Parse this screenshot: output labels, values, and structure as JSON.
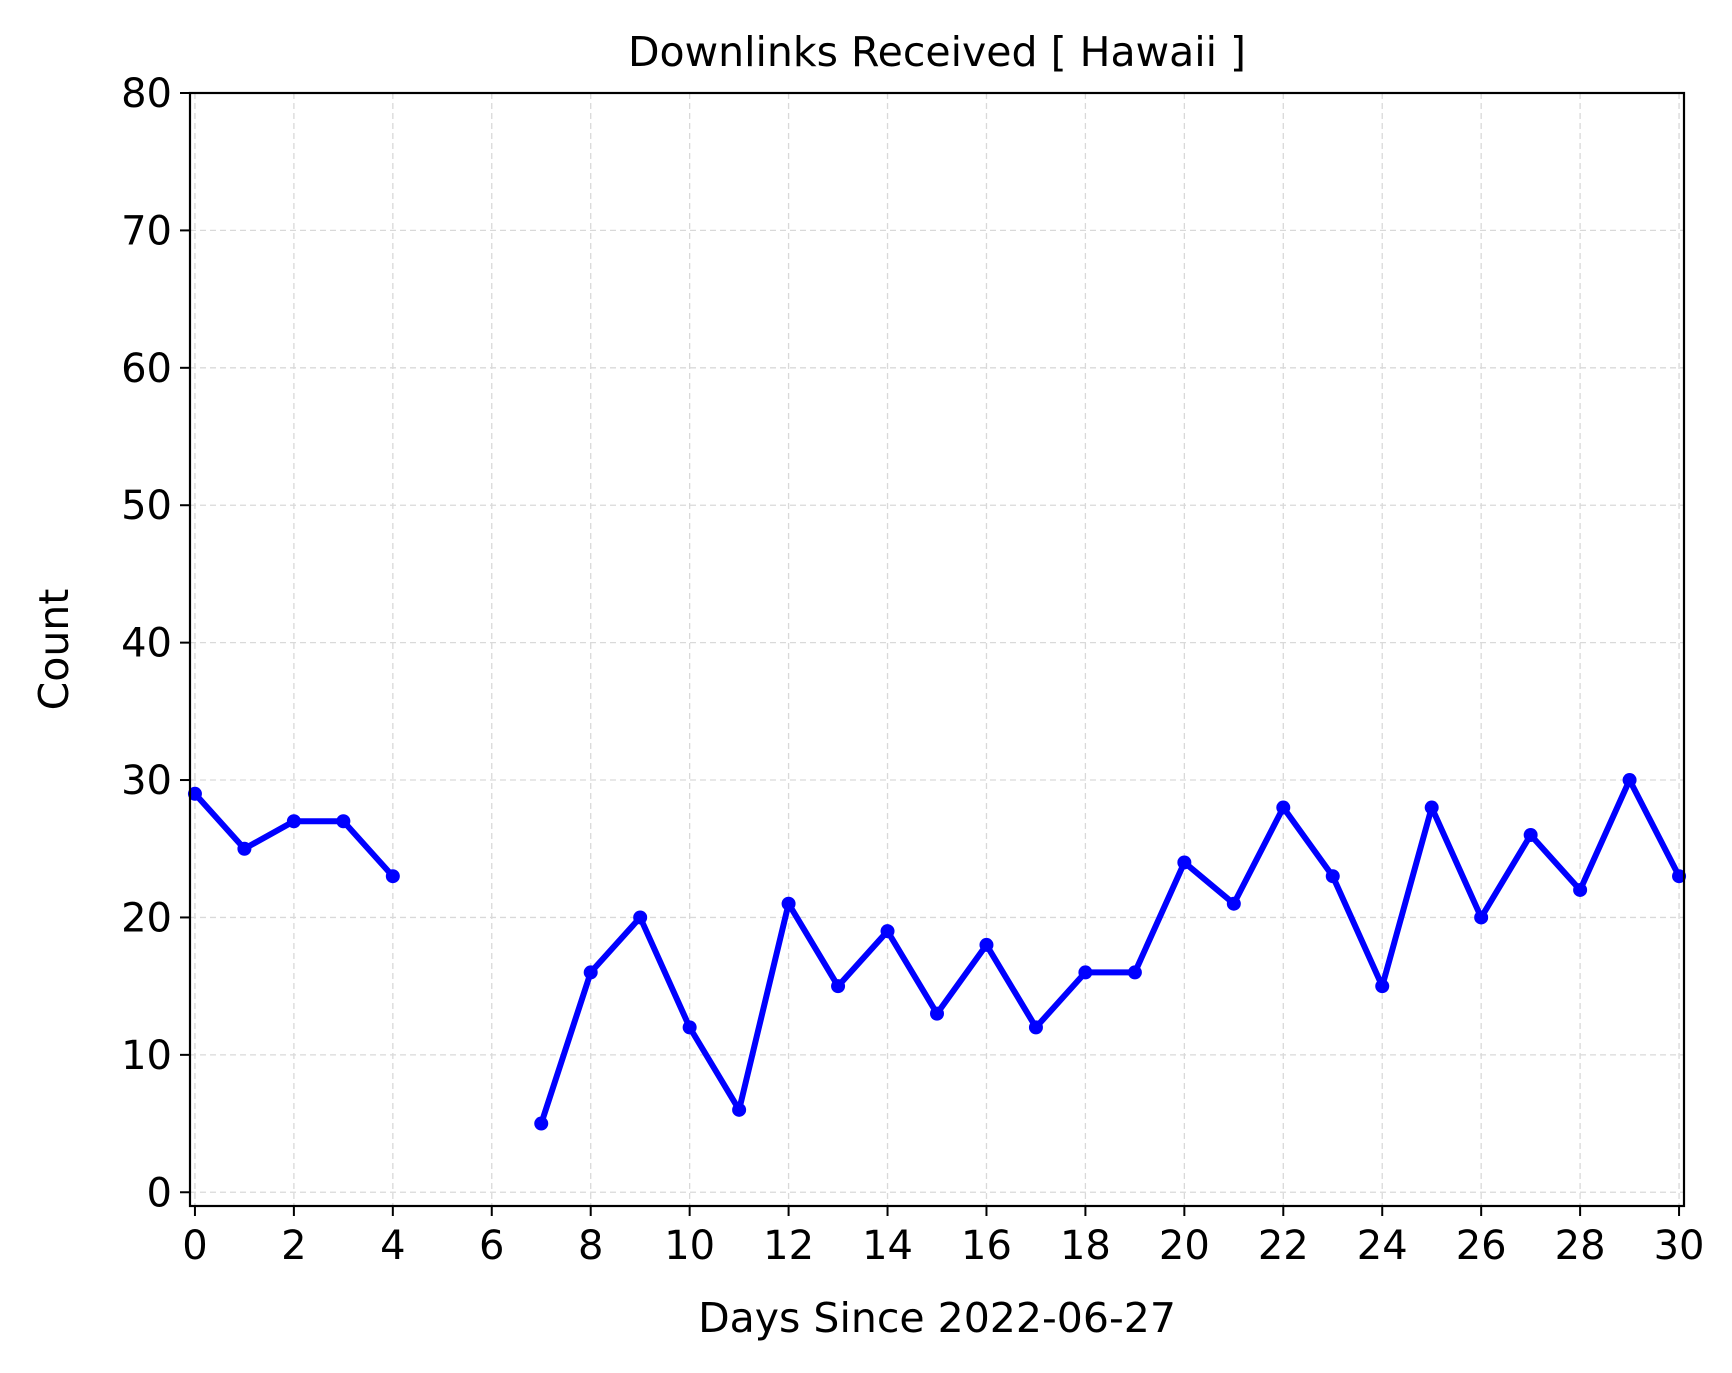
{
  "chart_data": {
    "type": "line",
    "title": "Downlinks Received [ Hawaii ]",
    "xlabel": "Days Since 2022-06-27",
    "ylabel": "Count",
    "xlim": [
      -0.1,
      30.1
    ],
    "ylim": [
      -1,
      80
    ],
    "xticks": [
      0,
      2,
      4,
      6,
      8,
      10,
      12,
      14,
      16,
      18,
      20,
      22,
      24,
      26,
      28,
      30
    ],
    "yticks": [
      0,
      10,
      20,
      30,
      40,
      50,
      60,
      70,
      80
    ],
    "grid": true,
    "line_color": "#0000ff",
    "series": [
      {
        "x": [
          0,
          1,
          2,
          3,
          4,
          5,
          6,
          7,
          8,
          9,
          10,
          11,
          12,
          13,
          14,
          15,
          16,
          17,
          18,
          19,
          20,
          21,
          22,
          23,
          24,
          25,
          26,
          27,
          28,
          29,
          30
        ],
        "y": [
          29,
          25,
          27,
          27,
          23,
          null,
          null,
          5,
          16,
          20,
          12,
          6,
          21,
          15,
          19,
          13,
          18,
          12,
          16,
          16,
          24,
          21,
          28,
          23,
          15,
          28,
          20,
          26,
          22,
          30,
          23
        ]
      }
    ]
  }
}
